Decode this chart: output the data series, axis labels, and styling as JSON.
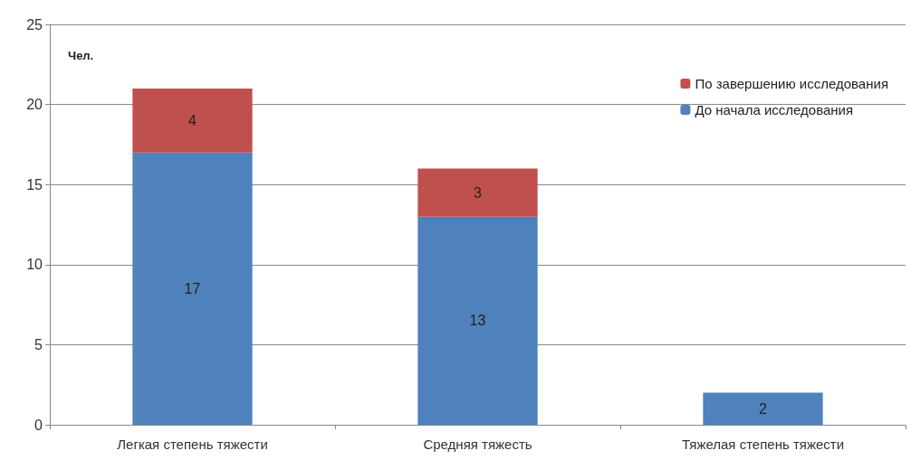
{
  "chart_data": {
    "type": "bar",
    "stacked": true,
    "ylabel": "Чел.",
    "categories": [
      "Легкая степень тяжести",
      "Средняя тяжесть",
      "Тяжелая степень тяжести"
    ],
    "series": [
      {
        "name": "До начала исследования",
        "color": "#4f81bd",
        "values": [
          17,
          13,
          2
        ]
      },
      {
        "name": "По завершению исследования",
        "color": "#c0504d",
        "values": [
          4,
          3,
          null
        ]
      }
    ],
    "ylim": [
      0,
      25
    ],
    "yticks": [
      0,
      5,
      10,
      15,
      20,
      25
    ],
    "grid": "y",
    "legend": "top right",
    "data_labels": true
  }
}
